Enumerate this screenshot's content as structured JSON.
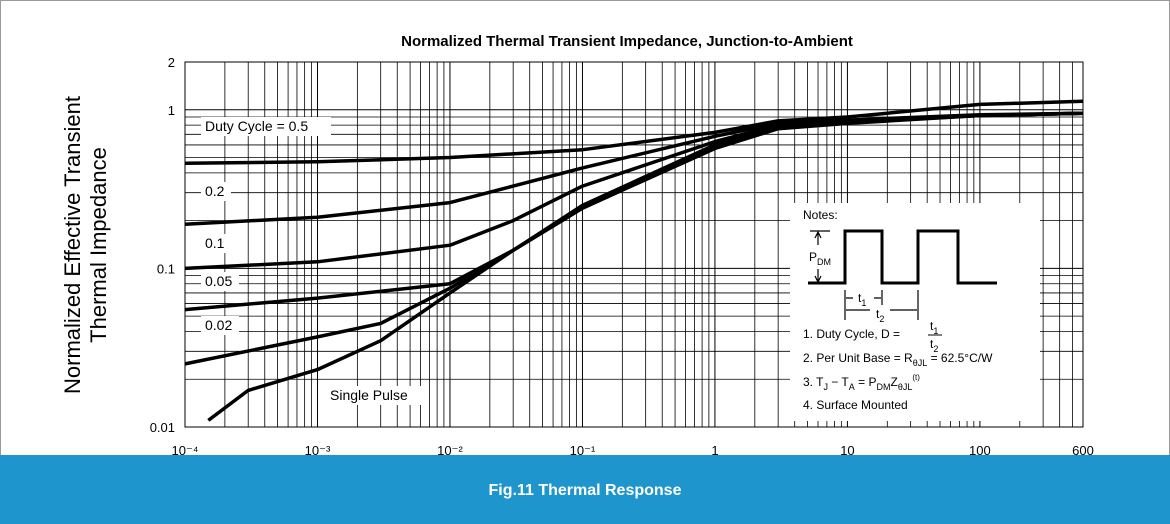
{
  "chart_data": {
    "type": "line",
    "title": "Normalized Thermal Transient Impedance, Junction-to-Ambient",
    "ylabel": [
      "Normalized Effective Transient",
      "Thermal Impedance"
    ],
    "xscale": "log",
    "yscale": "log",
    "grid": true,
    "xlim": [
      0.0001,
      600
    ],
    "ylim": [
      0.01,
      2
    ],
    "xticks": [
      {
        "value": 0.0001,
        "label": "10⁻⁴"
      },
      {
        "value": 0.001,
        "label": "10⁻³"
      },
      {
        "value": 0.01,
        "label": "10⁻²"
      },
      {
        "value": 0.1,
        "label": "10⁻¹"
      },
      1,
      10,
      100,
      600
    ],
    "yticks": [
      0.01,
      0.1,
      1,
      2
    ],
    "xminor": [
      0.0002,
      0.0003,
      0.0004,
      0.0005,
      0.0006,
      0.0007,
      0.0008,
      0.0009,
      0.002,
      0.003,
      0.004,
      0.005,
      0.006,
      0.007,
      0.008,
      0.009,
      0.02,
      0.03,
      0.04,
      0.05,
      0.06,
      0.07,
      0.08,
      0.09,
      0.2,
      0.3,
      0.4,
      0.5,
      0.6,
      0.7,
      0.8,
      0.9,
      2,
      3,
      4,
      5,
      6,
      7,
      8,
      9,
      20,
      30,
      40,
      50,
      60,
      70,
      80,
      90,
      200,
      300,
      400,
      500
    ],
    "yminor": [
      0.02,
      0.03,
      0.04,
      0.05,
      0.06,
      0.07,
      0.08,
      0.09,
      0.2,
      0.3,
      0.4,
      0.5,
      0.6,
      0.7,
      0.8,
      0.9
    ],
    "series": [
      {
        "name": "Duty Cycle = 0.5",
        "color": "#000000",
        "x": [
          0.0001,
          0.001,
          0.01,
          0.1,
          1,
          3,
          10,
          100,
          600
        ],
        "values": [
          0.46,
          0.47,
          0.5,
          0.56,
          0.72,
          0.85,
          0.9,
          1.08,
          1.13
        ]
      },
      {
        "name": "0.2",
        "color": "#000000",
        "x": [
          0.0001,
          0.001,
          0.01,
          0.03,
          0.1,
          1,
          3,
          10,
          100,
          600
        ],
        "values": [
          0.19,
          0.21,
          0.26,
          0.33,
          0.43,
          0.68,
          0.82,
          0.86,
          0.93,
          0.95
        ]
      },
      {
        "name": "0.1",
        "color": "#000000",
        "x": [
          0.0001,
          0.001,
          0.01,
          0.03,
          0.1,
          1,
          3,
          10,
          100,
          600
        ],
        "values": [
          0.1,
          0.11,
          0.14,
          0.2,
          0.33,
          0.63,
          0.8,
          0.85,
          0.92,
          0.95
        ]
      },
      {
        "name": "0.05",
        "color": "#000000",
        "x": [
          0.0001,
          0.001,
          0.01,
          0.03,
          0.1,
          1,
          3,
          10,
          100,
          600
        ],
        "values": [
          0.055,
          0.065,
          0.08,
          0.13,
          0.25,
          0.6,
          0.78,
          0.84,
          0.92,
          0.95
        ]
      },
      {
        "name": "0.02",
        "color": "#000000",
        "x": [
          0.0001,
          0.001,
          0.003,
          0.01,
          0.03,
          0.1,
          1,
          3,
          10,
          100,
          600
        ],
        "values": [
          0.025,
          0.037,
          0.045,
          0.075,
          0.13,
          0.24,
          0.58,
          0.77,
          0.83,
          0.92,
          0.95
        ]
      },
      {
        "name": "Single Pulse",
        "color": "#000000",
        "x": [
          0.00015,
          0.0003,
          0.001,
          0.003,
          0.01,
          0.03,
          0.1,
          1,
          3,
          10,
          100,
          600
        ],
        "values": [
          0.011,
          0.017,
          0.023,
          0.035,
          0.07,
          0.13,
          0.24,
          0.57,
          0.76,
          0.82,
          0.92,
          0.95
        ]
      }
    ]
  },
  "notes": {
    "heading": "Notes:",
    "pdm": [
      "P",
      "DM"
    ],
    "t1": [
      "t",
      "1"
    ],
    "t2": [
      "t",
      "2"
    ],
    "items": [
      [
        "1. Duty Cycle, D = "
      ],
      [
        "2. Per Unit Base = R",
        "θJL",
        " = 62.5°C/W"
      ],
      [
        "3. T",
        "J",
        "  − T",
        "A",
        " = P",
        "DM",
        "Z",
        "θJL"
      ],
      [
        "4. Surface Mounted"
      ]
    ],
    "item3_sup": "(t)"
  },
  "footer": "Fig.11 Thermal Response"
}
